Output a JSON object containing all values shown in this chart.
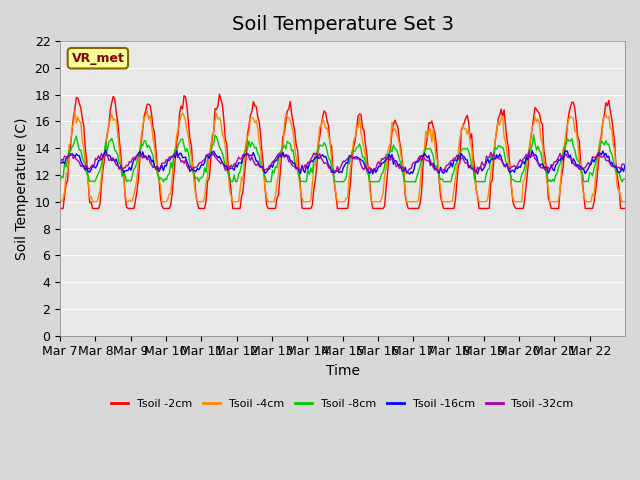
{
  "title": "Soil Temperature Set 3",
  "xlabel": "Time",
  "ylabel": "Soil Temperature (C)",
  "ylim": [
    0,
    22
  ],
  "yticks": [
    0,
    2,
    4,
    6,
    8,
    10,
    12,
    14,
    16,
    18,
    20,
    22
  ],
  "xtick_labels": [
    "Mar 7",
    "Mar 8",
    "Mar 9",
    "Mar 10",
    "Mar 11",
    "Mar 12",
    "Mar 13",
    "Mar 14",
    "Mar 15",
    "Mar 16",
    "Mar 17",
    "Mar 18",
    "Mar 19",
    "Mar 20",
    "Mar 21",
    "Mar 22"
  ],
  "series_colors": [
    "#ff0000",
    "#ff8800",
    "#00cc00",
    "#0000ff",
    "#aa00aa"
  ],
  "series_labels": [
    "Tsoil -2cm",
    "Tsoil -4cm",
    "Tsoil -8cm",
    "Tsoil -16cm",
    "Tsoil -32cm"
  ],
  "fig_bg_color": "#d8d8d8",
  "plot_bg_color": "#e8e8e8",
  "annotation_text": "VR_met",
  "annotation_bg": "#ffff99",
  "annotation_border": "#886600",
  "title_fontsize": 14,
  "axis_label_fontsize": 10,
  "tick_fontsize": 9
}
